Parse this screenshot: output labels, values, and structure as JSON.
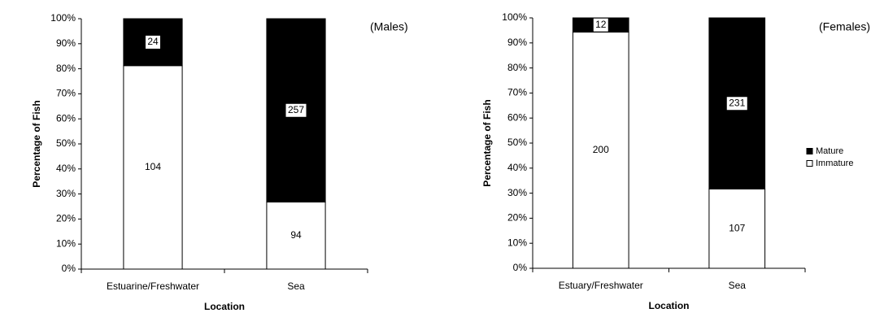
{
  "chart_data": [
    {
      "type": "stacked_bar_100",
      "title": "(Males)",
      "x_label": "Location",
      "y_label": "Percentage of Fish",
      "categories": [
        "Estuarine/Freshwater",
        "Sea"
      ],
      "series": [
        {
          "color": "#ffffff",
          "values": [
            104,
            94
          ]
        },
        {
          "color": "#000000",
          "values": [
            24,
            257
          ]
        }
      ],
      "ylim": [
        0,
        100
      ],
      "yticks": [
        {
          "value": 0,
          "label": "0%"
        },
        {
          "value": 10,
          "label": "10%"
        },
        {
          "value": 20,
          "label": "20%"
        },
        {
          "value": 30,
          "label": "30%"
        },
        {
          "value": 40,
          "label": "40%"
        },
        {
          "value": 50,
          "label": "50%"
        },
        {
          "value": 60,
          "label": "60%"
        },
        {
          "value": 70,
          "label": "70%"
        },
        {
          "value": 80,
          "label": "80%"
        },
        {
          "value": 90,
          "label": "90%"
        },
        {
          "value": 100,
          "label": "100%"
        }
      ],
      "legend": false
    },
    {
      "type": "stacked_bar_100",
      "title": "(Females)",
      "x_label": "Location",
      "y_label": "Percentage of Fish",
      "categories": [
        "Estuary/Freshwater",
        "Sea"
      ],
      "series": [
        {
          "name": "Immature",
          "color": "#ffffff",
          "values": [
            200,
            107
          ]
        },
        {
          "name": "Mature",
          "color": "#000000",
          "values": [
            12,
            231
          ]
        }
      ],
      "ylim": [
        0,
        100
      ],
      "yticks": [
        {
          "value": 0,
          "label": "0%"
        },
        {
          "value": 10,
          "label": "10%"
        },
        {
          "value": 20,
          "label": "20%"
        },
        {
          "value": 30,
          "label": "30%"
        },
        {
          "value": 40,
          "label": "40%"
        },
        {
          "value": 50,
          "label": "50%"
        },
        {
          "value": 60,
          "label": "60%"
        },
        {
          "value": 70,
          "label": "70%"
        },
        {
          "value": 80,
          "label": "80%"
        },
        {
          "value": 90,
          "label": "90%"
        },
        {
          "value": 100,
          "label": "100%"
        }
      ],
      "legend": true
    }
  ]
}
